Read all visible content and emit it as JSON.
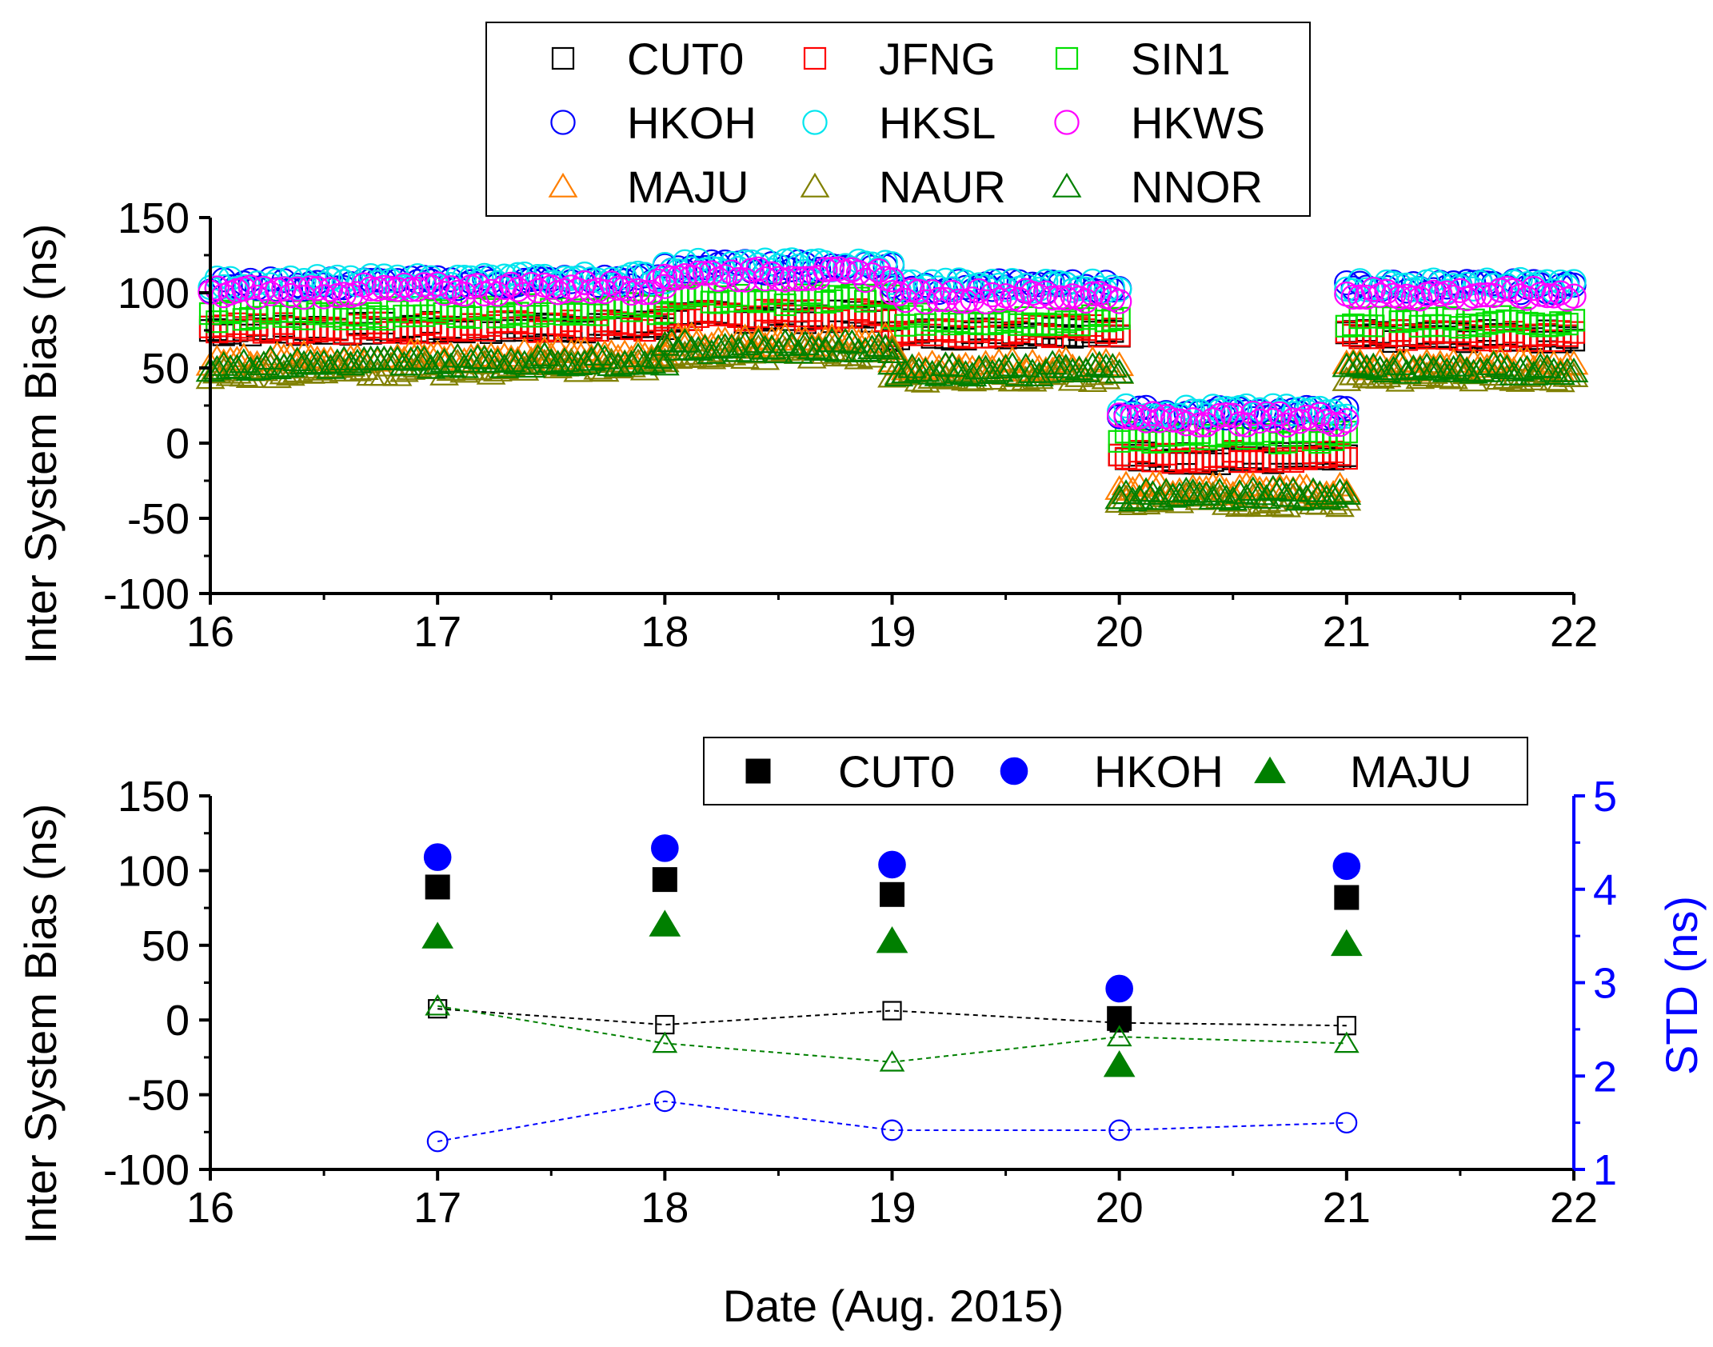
{
  "chart_data": [
    {
      "type": "scatter",
      "panel": "top",
      "title": "",
      "xlabel": "",
      "ylabel": "Inter System Bias (ns)",
      "xlim": [
        16,
        22
      ],
      "ylim": [
        -100,
        150
      ],
      "xticks": [
        "16",
        "17",
        "18",
        "19",
        "20",
        "21",
        "22"
      ],
      "yticks": [
        "-100",
        "-50",
        "0",
        "50",
        "100",
        "150"
      ],
      "legend": {
        "placement": "top-center",
        "columns": 3
      },
      "series": [
        {
          "name": "CUT0",
          "marker": "square-open",
          "color": "#000000",
          "segments": [
            {
              "x": [
                16,
                18
              ],
              "y": [
                75,
                78
              ]
            },
            {
              "x": [
                18,
                19
              ],
              "y": [
                84,
                84
              ]
            },
            {
              "x": [
                19,
                20
              ],
              "y": [
                72,
                75
              ]
            },
            {
              "x": [
                20,
                21
              ],
              "y": [
                -10,
                -10
              ]
            },
            {
              "x": [
                21,
                22
              ],
              "y": [
                71,
                71
              ]
            }
          ]
        },
        {
          "name": "JFNG",
          "marker": "square-open",
          "color": "#ff0000",
          "segments": [
            {
              "x": [
                16,
                18
              ],
              "y": [
                76,
                78
              ]
            },
            {
              "x": [
                18,
                19
              ],
              "y": [
                85,
                85
              ]
            },
            {
              "x": [
                19,
                20
              ],
              "y": [
                74,
                75
              ]
            },
            {
              "x": [
                20,
                21
              ],
              "y": [
                -9,
                -9
              ]
            },
            {
              "x": [
                21,
                22
              ],
              "y": [
                72,
                72
              ]
            }
          ]
        },
        {
          "name": "SIN1",
          "marker": "square-open",
          "color": "#00e000",
          "segments": [
            {
              "x": [
                16,
                18
              ],
              "y": [
                84,
                90
              ]
            },
            {
              "x": [
                18,
                19
              ],
              "y": [
                96,
                96
              ]
            },
            {
              "x": [
                19,
                20
              ],
              "y": [
                82,
                82
              ]
            },
            {
              "x": [
                20,
                21
              ],
              "y": [
                4,
                4
              ]
            },
            {
              "x": [
                21,
                22
              ],
              "y": [
                81,
                81
              ]
            }
          ]
        },
        {
          "name": "HKOH",
          "marker": "circle-open",
          "color": "#0000ff",
          "segments": [
            {
              "x": [
                16,
                18
              ],
              "y": [
                105,
                108
              ]
            },
            {
              "x": [
                18,
                19
              ],
              "y": [
                117,
                117
              ]
            },
            {
              "x": [
                19,
                20
              ],
              "y": [
                104,
                104
              ]
            },
            {
              "x": [
                20,
                21
              ],
              "y": [
                20,
                20
              ]
            },
            {
              "x": [
                21,
                22
              ],
              "y": [
                104,
                104
              ]
            }
          ]
        },
        {
          "name": "HKSL",
          "marker": "circle-open",
          "color": "#00e5ee",
          "segments": [
            {
              "x": [
                16,
                18
              ],
              "y": [
                106,
                110
              ]
            },
            {
              "x": [
                18,
                19
              ],
              "y": [
                118,
                118
              ]
            },
            {
              "x": [
                19,
                20
              ],
              "y": [
                105,
                105
              ]
            },
            {
              "x": [
                20,
                21
              ],
              "y": [
                21,
                21
              ]
            },
            {
              "x": [
                21,
                22
              ],
              "y": [
                105,
                105
              ]
            }
          ]
        },
        {
          "name": "HKWS",
          "marker": "circle-open",
          "color": "#ff00ff",
          "segments": [
            {
              "x": [
                16,
                18
              ],
              "y": [
                100,
                104
              ]
            },
            {
              "x": [
                18,
                19
              ],
              "y": [
                112,
                112
              ]
            },
            {
              "x": [
                19,
                20
              ],
              "y": [
                98,
                98
              ]
            },
            {
              "x": [
                20,
                21
              ],
              "y": [
                16,
                16
              ]
            },
            {
              "x": [
                21,
                22
              ],
              "y": [
                99,
                99
              ]
            }
          ]
        },
        {
          "name": "MAJU",
          "marker": "triangle-open",
          "color": "#ff7f00",
          "segments": [
            {
              "x": [
                16,
                18
              ],
              "y": [
                55,
                60
              ]
            },
            {
              "x": [
                18,
                19
              ],
              "y": [
                68,
                68
              ]
            },
            {
              "x": [
                19,
                20
              ],
              "y": [
                52,
                52
              ]
            },
            {
              "x": [
                20,
                21
              ],
              "y": [
                -31,
                -31
              ]
            },
            {
              "x": [
                21,
                22
              ],
              "y": [
                52,
                52
              ]
            }
          ]
        },
        {
          "name": "NAUR",
          "marker": "triangle-open",
          "color": "#808000",
          "segments": [
            {
              "x": [
                16,
                18
              ],
              "y": [
                47,
                52
              ]
            },
            {
              "x": [
                18,
                19
              ],
              "y": [
                60,
                60
              ]
            },
            {
              "x": [
                19,
                20
              ],
              "y": [
                45,
                45
              ]
            },
            {
              "x": [
                20,
                21
              ],
              "y": [
                -38,
                -38
              ]
            },
            {
              "x": [
                21,
                22
              ],
              "y": [
                45,
                45
              ]
            }
          ]
        },
        {
          "name": "NNOR",
          "marker": "triangle-open",
          "color": "#008000",
          "segments": [
            {
              "x": [
                16,
                18
              ],
              "y": [
                52,
                56
              ]
            },
            {
              "x": [
                18,
                19
              ],
              "y": [
                64,
                64
              ]
            },
            {
              "x": [
                19,
                20
              ],
              "y": [
                49,
                49
              ]
            },
            {
              "x": [
                20,
                21
              ],
              "y": [
                -34,
                -34
              ]
            },
            {
              "x": [
                21,
                22
              ],
              "y": [
                49,
                49
              ]
            }
          ]
        }
      ]
    },
    {
      "type": "scatter",
      "panel": "bottom",
      "title": "",
      "xlabel": "Date (Aug. 2015)",
      "ylabel": "Inter System Bias (ns)",
      "y2label": "STD (ns)",
      "xlim": [
        16,
        22
      ],
      "ylim": [
        -100,
        150
      ],
      "y2lim": [
        1,
        5
      ],
      "xticks": [
        "16",
        "17",
        "18",
        "19",
        "20",
        "21",
        "22"
      ],
      "yticks": [
        "-100",
        "-50",
        "0",
        "50",
        "100",
        "150"
      ],
      "y2ticks": [
        "1",
        "2",
        "3",
        "4",
        "5"
      ],
      "legend": {
        "placement": "top-right",
        "columns": 3
      },
      "x": [
        17,
        18,
        19,
        20,
        21
      ],
      "series": [
        {
          "name": "CUT0",
          "axis": "left",
          "marker": "square-filled",
          "color": "#000000",
          "values": [
            89,
            94,
            84,
            1,
            82
          ]
        },
        {
          "name": "HKOH",
          "axis": "left",
          "marker": "circle-filled",
          "color": "#0000ff",
          "values": [
            109,
            115,
            104,
            21,
            103
          ]
        },
        {
          "name": "MAJU",
          "axis": "left",
          "marker": "triangle-filled",
          "color": "#007f00",
          "values": [
            56,
            64,
            53,
            -30,
            51
          ]
        },
        {
          "name": "CUT0 STD",
          "axis": "right",
          "marker": "square-open",
          "line": "dashed",
          "color": "#000000",
          "values": [
            2.72,
            2.55,
            2.7,
            2.57,
            2.54
          ]
        },
        {
          "name": "HKOH STD",
          "axis": "right",
          "marker": "circle-open",
          "line": "dashed",
          "color": "#0000ff",
          "values": [
            1.3,
            1.73,
            1.42,
            1.42,
            1.5
          ]
        },
        {
          "name": "MAJU STD",
          "axis": "right",
          "marker": "triangle-open",
          "line": "dashed",
          "color": "#008000",
          "values": [
            2.75,
            2.35,
            2.15,
            2.42,
            2.35
          ]
        }
      ]
    }
  ],
  "colors": {
    "axis": "#000000",
    "right_axis": "#0000ff"
  }
}
